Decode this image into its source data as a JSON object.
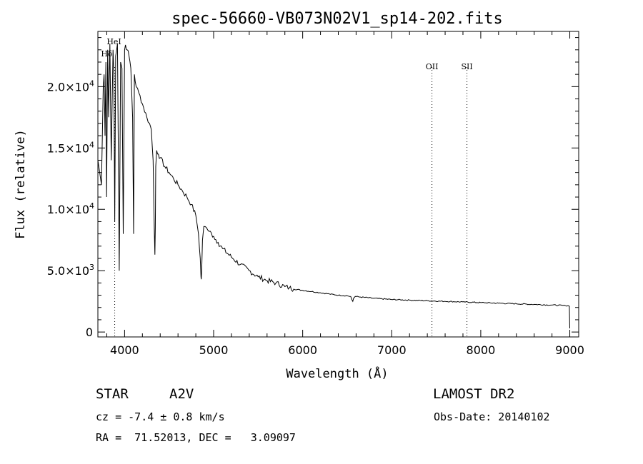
{
  "chart_data": {
    "type": "line",
    "title": "spec-56660-VB073N02V1_sp14-202.fits",
    "xlabel": "Wavelength (Å)",
    "ylabel": "Flux (relative)",
    "xlim": [
      3700,
      9100
    ],
    "ylim": [
      -400,
      24500
    ],
    "x_ticks": [
      4000,
      5000,
      6000,
      7000,
      8000,
      9000
    ],
    "x_tick_labels": [
      "4000",
      "5000",
      "6000",
      "7000",
      "8000",
      "9000"
    ],
    "y_ticks": [
      0,
      5000,
      10000,
      15000,
      20000
    ],
    "y_tick_labels": [
      {
        "mant": "0",
        "exp": ""
      },
      {
        "mant": "5.0×10",
        "exp": "3"
      },
      {
        "mant": "1.0×10",
        "exp": "4"
      },
      {
        "mant": "1.5×10",
        "exp": "4"
      },
      {
        "mant": "2.0×10",
        "exp": "4"
      }
    ],
    "series": [
      {
        "x": [
          3700,
          3740,
          3760,
          3770,
          3780,
          3790,
          3798,
          3810,
          3820,
          3835,
          3850,
          3870,
          3880,
          3889,
          3900,
          3920,
          3940,
          3955,
          3970,
          3985,
          4000,
          4010,
          4030,
          4050,
          4070,
          4090,
          4101,
          4110,
          4130,
          4160,
          4200,
          4250,
          4280,
          4300,
          4320,
          4335,
          4340,
          4345,
          4350,
          4360,
          4380,
          4400,
          4450,
          4500,
          4550,
          4600,
          4650,
          4700,
          4750,
          4800,
          4830,
          4850,
          4858,
          4861,
          4866,
          4875,
          4890,
          4920,
          4950,
          5000,
          5050,
          5100,
          5200,
          5300,
          5400,
          5500,
          5600,
          5700,
          5800,
          5850,
          5900,
          6000,
          6100,
          6200,
          6300,
          6400,
          6500,
          6540,
          6555,
          6563,
          6572,
          6590,
          6650,
          6800,
          7000,
          7200,
          7400,
          7600,
          7800,
          8000,
          8200,
          8400,
          8600,
          8800,
          8950,
          8980,
          8995,
          9000
        ],
        "y": [
          14000,
          12000,
          20000,
          21000,
          16000,
          22000,
          11000,
          23000,
          17500,
          23500,
          14000,
          23000,
          21000,
          9000,
          22500,
          23500,
          5000,
          22000,
          21500,
          8000,
          23000,
          23400,
          23000,
          22500,
          21500,
          17500,
          8000,
          21000,
          20000,
          19500,
          18600,
          17500,
          17000,
          16500,
          14000,
          8000,
          6300,
          8500,
          13500,
          14800,
          14500,
          14200,
          13500,
          13000,
          12500,
          12000,
          11500,
          11000,
          10400,
          9500,
          8000,
          6000,
          4500,
          4300,
          5000,
          7500,
          8600,
          8500,
          8200,
          7800,
          7300,
          6800,
          6100,
          5500,
          5000,
          4500,
          4200,
          4000,
          3700,
          3600,
          3500,
          3400,
          3300,
          3200,
          3100,
          3000,
          2950,
          2900,
          2600,
          2500,
          2750,
          2900,
          2850,
          2750,
          2650,
          2600,
          2550,
          2500,
          2450,
          2400,
          2350,
          2300,
          2250,
          2200,
          2150,
          2150,
          2100,
          300
        ]
      }
    ],
    "markers": [
      {
        "name": "Hδ",
        "x": 3889,
        "style": "dotted"
      },
      {
        "name": "HeI",
        "x": 3889,
        "style": "none"
      },
      {
        "name": "OII",
        "x": 7452,
        "style": "dotted"
      },
      {
        "name": "SII",
        "x": 7845,
        "style": "dotted"
      }
    ],
    "grid": false
  },
  "info": {
    "class": "STAR",
    "subclass": "A2V",
    "survey": "LAMOST DR2",
    "cz": "cz = -7.4 ± 0.8 km/s",
    "obs_date": "Obs-Date: 20140102",
    "radec": "RA =  71.52013, DEC =   3.09097"
  }
}
